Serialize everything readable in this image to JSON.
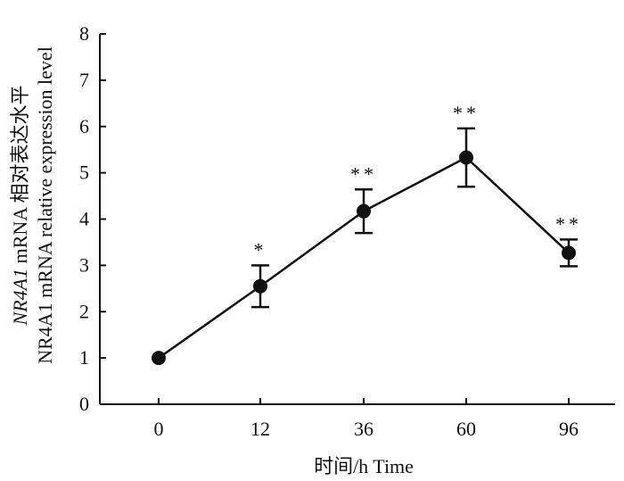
{
  "chart_data": {
    "type": "line",
    "categories": [
      "0",
      "12",
      "36",
      "60",
      "96"
    ],
    "series": [
      {
        "values": [
          1.0,
          2.55,
          4.17,
          5.33,
          3.27
        ],
        "errors": [
          0.0,
          0.45,
          0.47,
          0.63,
          0.29
        ],
        "significance": [
          "",
          "*",
          "**",
          "**",
          "**"
        ]
      }
    ],
    "ylim": [
      0,
      8
    ],
    "yticks": [
      "0",
      "1",
      "2",
      "3",
      "4",
      "5",
      "6",
      "7",
      "8"
    ],
    "xlabel": "时间/h Time",
    "ylabel_italic": "NR4A1",
    "ylabel_line1_rest": " mRNA 相对表达水平",
    "ylabel_line2": "NR4A1 mRNA relative expression level",
    "grid": false,
    "legend": "none",
    "colors": {
      "line": "#111111",
      "marker": "#111111"
    }
  }
}
